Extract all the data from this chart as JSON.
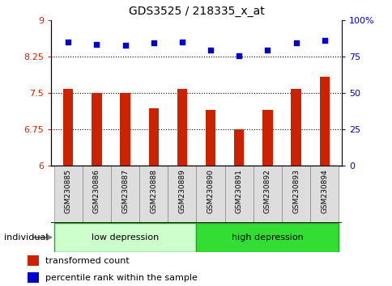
{
  "title": "GDS3525 / 218335_x_at",
  "samples": [
    "GSM230885",
    "GSM230886",
    "GSM230887",
    "GSM230888",
    "GSM230889",
    "GSM230890",
    "GSM230891",
    "GSM230892",
    "GSM230893",
    "GSM230894"
  ],
  "bar_values": [
    7.58,
    7.5,
    7.5,
    7.18,
    7.58,
    7.15,
    6.75,
    7.15,
    7.58,
    7.83
  ],
  "dot_values": [
    8.55,
    8.5,
    8.48,
    8.53,
    8.55,
    8.38,
    8.27,
    8.38,
    8.53,
    8.58
  ],
  "bar_color": "#cc2200",
  "dot_color": "#0000cc",
  "ylim_left": [
    6.0,
    9.0
  ],
  "yticks_left": [
    6.0,
    6.75,
    7.5,
    8.25,
    9.0
  ],
  "ytick_labels_left": [
    "6",
    "6.75",
    "7.5",
    "8.25",
    "9"
  ],
  "yticks_right_pos": [
    6.0,
    6.75,
    7.5,
    8.25,
    9.0
  ],
  "ytick_labels_right": [
    "0",
    "25",
    "50",
    "75",
    "100%"
  ],
  "hlines": [
    6.75,
    7.5,
    8.25
  ],
  "group1_label": "low depression",
  "group2_label": "high depression",
  "group1_color": "#ccffcc",
  "group2_color": "#33dd33",
  "group_edge_color": "#22aa22",
  "individual_label": "individual",
  "legend_bar_label": "transformed count",
  "legend_dot_label": "percentile rank within the sample",
  "bar_width": 0.35,
  "sample_box_color": "#dddddd",
  "sample_box_edge": "#aaaaaa"
}
